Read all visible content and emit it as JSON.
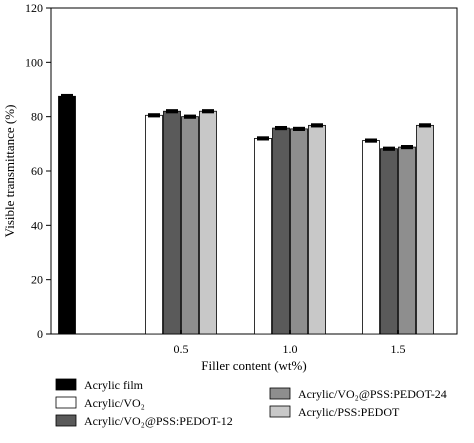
{
  "chart_data": {
    "type": "bar",
    "xlabel": "Filler content (wt%)",
    "ylabel": "Visible transmittance (%)",
    "ylim": [
      0,
      120
    ],
    "yticks": [
      0,
      20,
      40,
      60,
      80,
      100,
      120
    ],
    "groups": [
      {
        "label": "",
        "bars": [
          {
            "series": 0,
            "value": 87.5,
            "err": 0.5
          }
        ]
      },
      {
        "label": "0.5",
        "bars": [
          {
            "series": 1,
            "value": 80.5,
            "err": 0.4
          },
          {
            "series": 2,
            "value": 82.0,
            "err": 0.4
          },
          {
            "series": 3,
            "value": 80.0,
            "err": 0.4
          },
          {
            "series": 4,
            "value": 82.0,
            "err": 0.4
          }
        ]
      },
      {
        "label": "1.0",
        "bars": [
          {
            "series": 1,
            "value": 72.0,
            "err": 0.4
          },
          {
            "series": 2,
            "value": 75.8,
            "err": 0.4
          },
          {
            "series": 3,
            "value": 75.5,
            "err": 0.4
          },
          {
            "series": 4,
            "value": 76.8,
            "err": 0.4
          }
        ]
      },
      {
        "label": "1.5",
        "bars": [
          {
            "series": 1,
            "value": 71.2,
            "err": 0.4
          },
          {
            "series": 2,
            "value": 68.2,
            "err": 0.4
          },
          {
            "series": 3,
            "value": 68.8,
            "err": 0.4
          },
          {
            "series": 4,
            "value": 76.8,
            "err": 0.4
          }
        ]
      }
    ],
    "series": [
      {
        "name": "Acrylic film",
        "color": "#000000"
      },
      {
        "name": "Acrylic/VO₂",
        "color": "#ffffff"
      },
      {
        "name": "Acrylic/VO₂@PSS:PEDOT-12",
        "color": "#5a5a5a"
      },
      {
        "name": "Acrylic/VO₂@PSS:PEDOT-24",
        "color": "#8e8e8e"
      },
      {
        "name": "Acrylic/PSS:PEDOT",
        "color": "#c8c8c8"
      }
    ],
    "legend_position": "bottom"
  }
}
